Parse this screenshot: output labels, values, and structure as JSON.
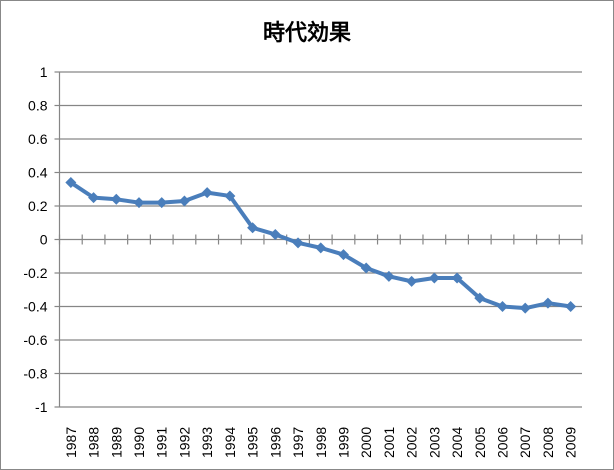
{
  "chart_data": {
    "type": "line",
    "title": "時代効果",
    "xlabel": "",
    "ylabel": "",
    "categories": [
      "1987",
      "1988",
      "1989",
      "1990",
      "1991",
      "1992",
      "1993",
      "1994",
      "1995",
      "1996",
      "1997",
      "1998",
      "1999",
      "2000",
      "2001",
      "2002",
      "2003",
      "2004",
      "2005",
      "2006",
      "2007",
      "2008",
      "2009"
    ],
    "series": [
      {
        "name": "時代効果",
        "values": [
          0.34,
          0.25,
          0.24,
          0.22,
          0.22,
          0.23,
          0.28,
          0.26,
          0.07,
          0.03,
          -0.02,
          -0.05,
          -0.09,
          -0.17,
          -0.22,
          -0.25,
          -0.23,
          -0.23,
          -0.35,
          -0.4,
          -0.41,
          -0.38,
          -0.4
        ],
        "color": "#4a7ebb",
        "marker": "diamond"
      }
    ],
    "ylim": [
      -1,
      1
    ],
    "yticks": [
      "1",
      "0.8",
      "0.6",
      "0.4",
      "0.2",
      "0",
      "-0.2",
      "-0.4",
      "-0.6",
      "-0.8",
      "-1"
    ],
    "grid": true,
    "legend": "none"
  }
}
